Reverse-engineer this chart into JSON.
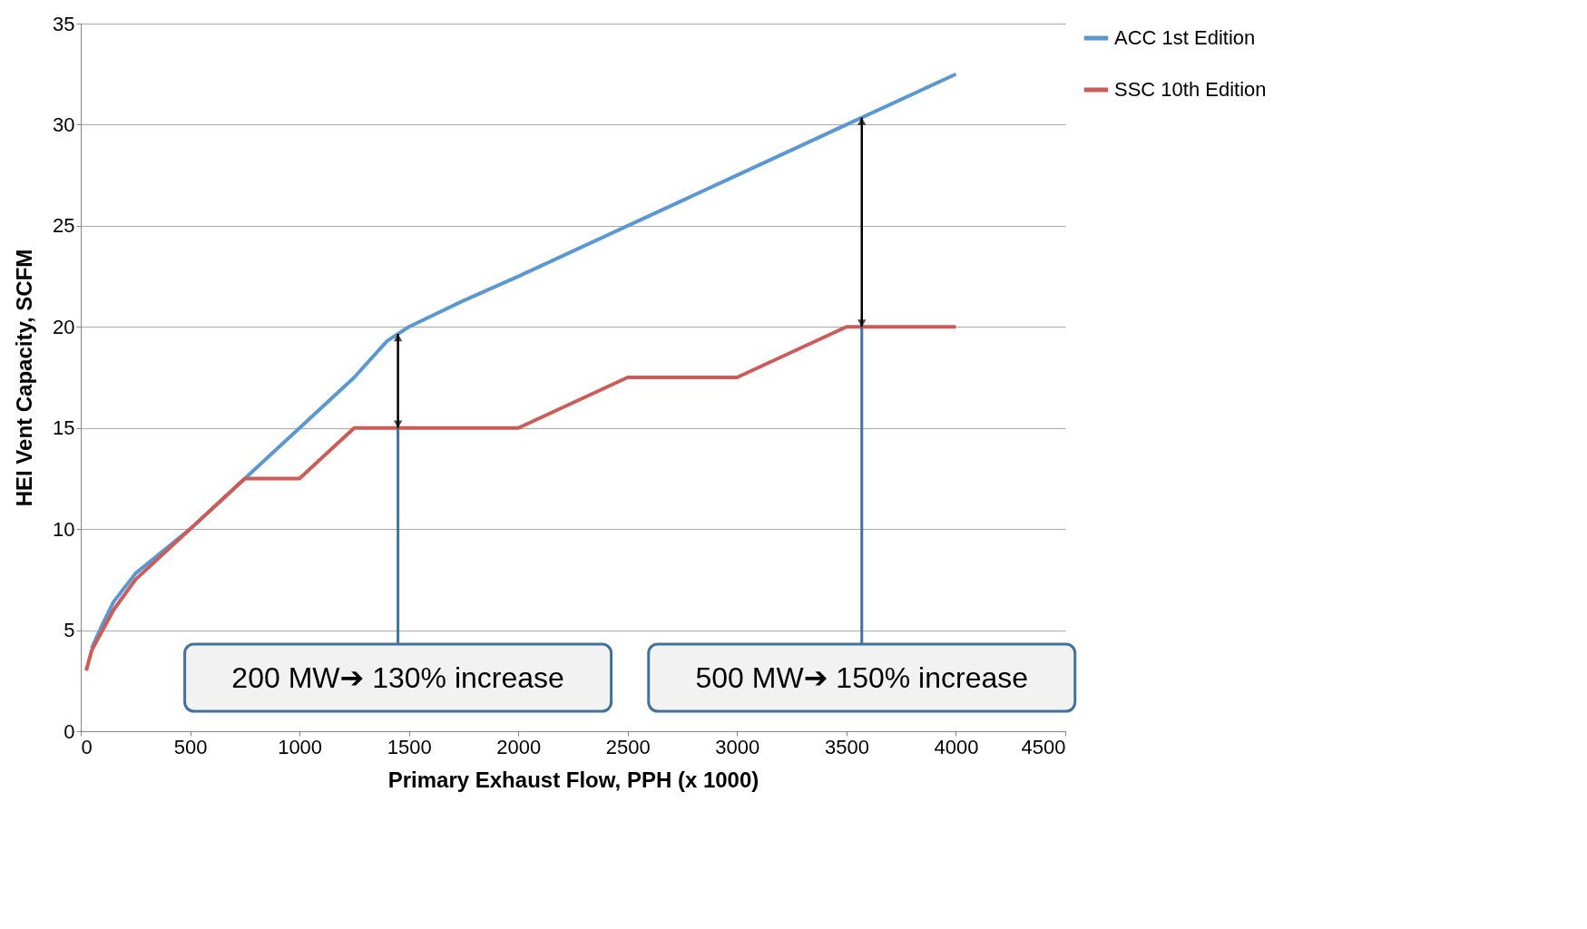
{
  "chart_data": {
    "type": "line",
    "xlabel": "Primary Exhaust Flow, PPH (x 1000)",
    "ylabel": "HEI Vent Capacity, SCFM",
    "xlim": [
      0,
      4500
    ],
    "xticks": [
      0,
      500,
      1000,
      1500,
      2000,
      2500,
      3000,
      3500,
      4000,
      4500
    ],
    "ylim": [
      0,
      35
    ],
    "yticks": [
      0,
      5,
      10,
      15,
      20,
      25,
      30,
      35
    ],
    "grid": "y",
    "legend": "right",
    "series": [
      {
        "name": "ACC 1st Edition",
        "color": "#5b97d1",
        "x": [
          50,
          100,
          150,
          250,
          500,
          750,
          1000,
          1250,
          1400,
          1500,
          1750,
          2000,
          2500,
          3000,
          3500,
          4000
        ],
        "values": [
          4.1,
          5.3,
          6.4,
          7.8,
          10,
          12.5,
          15,
          17.5,
          19.3,
          20,
          21.3,
          22.5,
          25,
          27.5,
          30,
          32.5
        ]
      },
      {
        "name": "SSC 10th Edition",
        "color": "#cd5b57",
        "x": [
          25,
          50,
          100,
          150,
          250,
          500,
          750,
          1000,
          1250,
          2000,
          2500,
          3000,
          3500,
          4000
        ],
        "values": [
          3,
          4,
          5,
          6,
          7.5,
          10,
          12.5,
          12.5,
          15,
          15,
          17.5,
          17.5,
          20,
          20
        ]
      }
    ],
    "annotations": [
      {
        "text": "200 MW➔ 130% increase",
        "x": 1450,
        "y": 15
      },
      {
        "text": "500 MW➔ 150% increase",
        "x": 3570,
        "y": 20
      }
    ]
  }
}
